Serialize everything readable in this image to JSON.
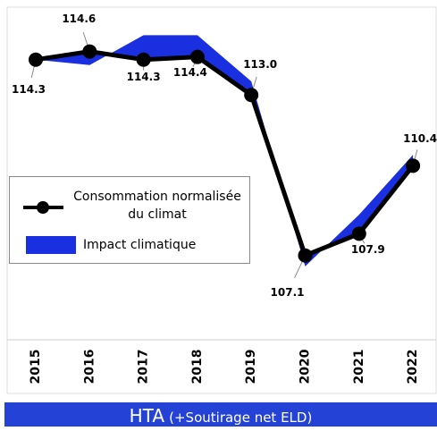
{
  "chart_data": {
    "type": "line",
    "categories": [
      "2015",
      "2016",
      "2017",
      "2018",
      "2019",
      "2020",
      "2021",
      "2022"
    ],
    "series": [
      {
        "name": "Consommation normalisée du climat",
        "color": "#000000",
        "values": [
          114.3,
          114.6,
          114.3,
          114.4,
          113.0,
          107.1,
          107.9,
          110.4
        ],
        "value_labels": [
          "114.3",
          "114.6",
          "114.3",
          "114.4",
          "113.0",
          "107.1",
          "107.9",
          "110.4"
        ]
      },
      {
        "name": "Impact climatique",
        "color": "#1a2fe0",
        "values": [
          114.3,
          114.1,
          115.2,
          115.2,
          113.5,
          106.7,
          108.6,
          110.8
        ]
      }
    ],
    "ylim": [
      104,
      116
    ],
    "banner": {
      "title": "HTA",
      "subtitle": "(+Soutirage net ELD)"
    }
  }
}
